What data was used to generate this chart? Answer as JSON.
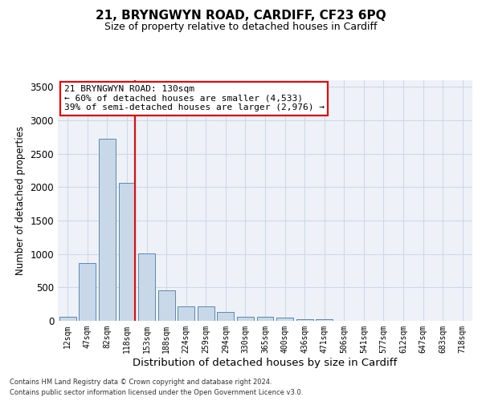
{
  "title": "21, BRYNGWYN ROAD, CARDIFF, CF23 6PQ",
  "subtitle": "Size of property relative to detached houses in Cardiff",
  "xlabel": "Distribution of detached houses by size in Cardiff",
  "ylabel": "Number of detached properties",
  "bar_categories": [
    "12sqm",
    "47sqm",
    "82sqm",
    "118sqm",
    "153sqm",
    "188sqm",
    "224sqm",
    "259sqm",
    "294sqm",
    "330sqm",
    "365sqm",
    "400sqm",
    "436sqm",
    "471sqm",
    "506sqm",
    "541sqm",
    "577sqm",
    "612sqm",
    "647sqm",
    "683sqm",
    "718sqm"
  ],
  "bar_values": [
    60,
    860,
    2720,
    2060,
    1010,
    460,
    220,
    220,
    130,
    65,
    55,
    45,
    25,
    20,
    5,
    5,
    5,
    5,
    5,
    5,
    5
  ],
  "bar_color": "#c8d8e8",
  "bar_edge_color": "#5a8ab0",
  "grid_color": "#d0d8e8",
  "background_color": "#eef2f8",
  "vline_color": "red",
  "annotation_text": "21 BRYNGWYN ROAD: 130sqm\n← 60% of detached houses are smaller (4,533)\n39% of semi-detached houses are larger (2,976) →",
  "annotation_box_color": "white",
  "annotation_box_edge_color": "red",
  "ylim": [
    0,
    3600
  ],
  "yticks": [
    0,
    500,
    1000,
    1500,
    2000,
    2500,
    3000,
    3500
  ],
  "footer_line1": "Contains HM Land Registry data © Crown copyright and database right 2024.",
  "footer_line2": "Contains public sector information licensed under the Open Government Licence v3.0."
}
